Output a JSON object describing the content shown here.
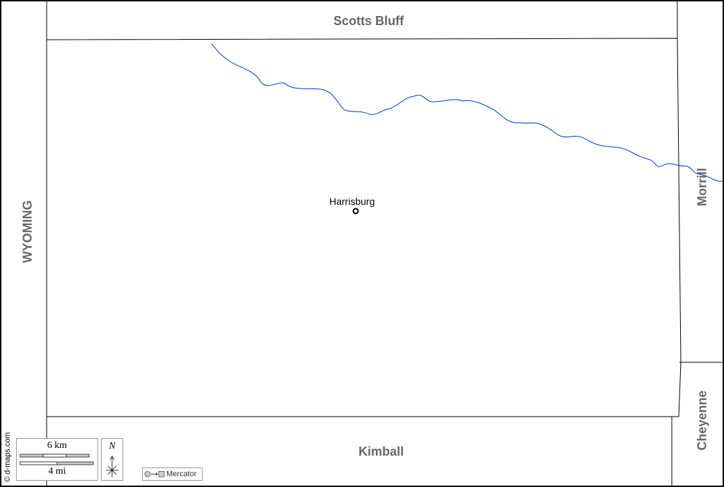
{
  "map": {
    "neighbors": {
      "north": "Scotts Bluff",
      "south": "Kimball",
      "west": "WYOMING",
      "east_upper": "Morrill",
      "east_lower": "Cheyenne"
    },
    "cities": [
      {
        "name": "Harrisburg",
        "type": "county-seat"
      }
    ],
    "scale": {
      "metric": "6 km",
      "imperial": "4 mi"
    },
    "north_label": "N",
    "projection": "Mercator",
    "credit": "© d-maps.com",
    "colors": {
      "river": "#0033cc",
      "border": "#000000",
      "neighbor_label": "#666666"
    }
  }
}
